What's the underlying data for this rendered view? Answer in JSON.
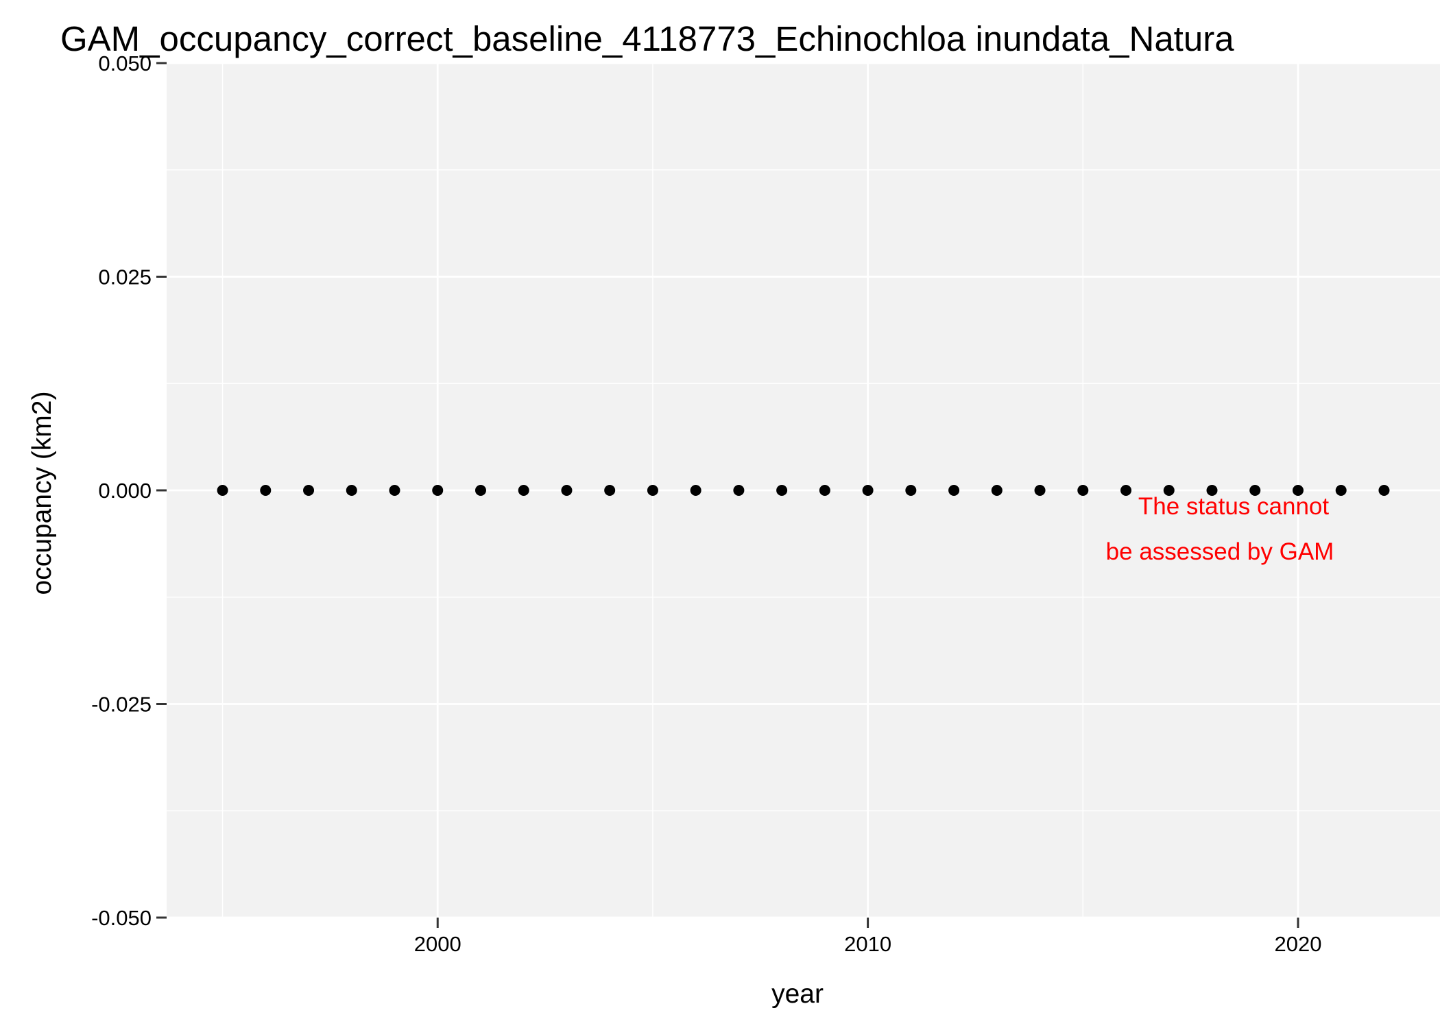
{
  "chart_data": {
    "type": "scatter",
    "title": "GAM_occupancy_correct_baseline_4118773_Echinochloa inundata_Natura",
    "xlabel": "year",
    "ylabel": "occupancy (km2)",
    "xlim": [
      1993.7,
      2023.3
    ],
    "ylim": [
      -0.05,
      0.05
    ],
    "x_ticks": [
      2000,
      2010,
      2020
    ],
    "x_tick_labels": [
      "2000",
      "2010",
      "2020"
    ],
    "x_minor_ticks": [
      1995,
      2005,
      2015
    ],
    "y_ticks": [
      -0.05,
      -0.025,
      0,
      0.025,
      0.05
    ],
    "y_tick_labels": [
      "-0.050",
      "-0.025",
      "0.000",
      "0.025",
      "0.050"
    ],
    "y_minor_ticks": [
      -0.0375,
      -0.0125,
      0.0125,
      0.0375
    ],
    "grid": true,
    "panel_background": "#f2f2f2",
    "point_color": "#000000",
    "annotation": {
      "lines": [
        "The status cannot",
        "be assessed by GAM"
      ],
      "color": "#ff0000"
    },
    "series": [
      {
        "x": [
          1995,
          1996,
          1997,
          1998,
          1999,
          2000,
          2001,
          2002,
          2003,
          2004,
          2005,
          2006,
          2007,
          2008,
          2009,
          2010,
          2011,
          2012,
          2013,
          2014,
          2015,
          2016,
          2017,
          2018,
          2019,
          2020,
          2021,
          2022
        ],
        "y": [
          0,
          0,
          0,
          0,
          0,
          0,
          0,
          0,
          0,
          0,
          0,
          0,
          0,
          0,
          0,
          0,
          0,
          0,
          0,
          0,
          0,
          0,
          0,
          0,
          0,
          0,
          0,
          0
        ]
      }
    ]
  }
}
